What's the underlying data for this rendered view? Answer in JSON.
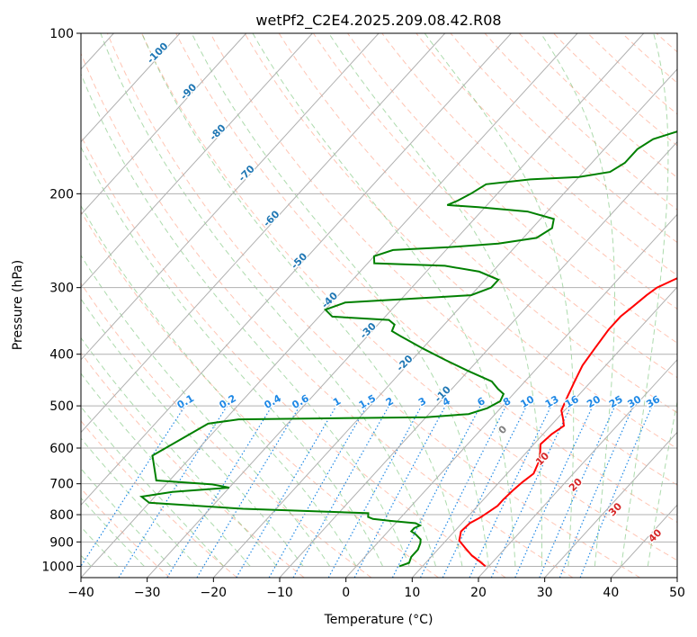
{
  "chart_data": {
    "type": "line",
    "title": "wetPf2_C2E4.2025.209.08.42.R08",
    "xlabel": "Temperature (°C)",
    "ylabel": "Pressure (hPa)",
    "xlim": [
      -40,
      50
    ],
    "ylim": [
      1050,
      100
    ],
    "y_scale": "log",
    "grid": true,
    "x_ticks": [
      -40,
      -30,
      -20,
      -10,
      0,
      10,
      20,
      30,
      40,
      50
    ],
    "y_ticks": [
      100,
      200,
      300,
      400,
      500,
      600,
      700,
      800,
      900,
      1000
    ],
    "series": [
      {
        "color": "#ff0000",
        "kind": "temperature",
        "points": [
          [
            19.5,
            1000
          ],
          [
            18,
            980
          ],
          [
            16,
            955
          ],
          [
            14,
            925
          ],
          [
            12,
            895
          ],
          [
            11,
            860
          ],
          [
            11.2,
            830
          ],
          [
            12,
            810
          ],
          [
            12.5,
            790
          ],
          [
            13,
            770
          ],
          [
            13,
            750
          ],
          [
            13.2,
            720
          ],
          [
            13.5,
            695
          ],
          [
            14,
            670
          ],
          [
            13.5,
            650
          ],
          [
            13,
            630
          ],
          [
            12,
            610
          ],
          [
            11,
            590
          ],
          [
            11.3,
            565
          ],
          [
            12,
            545
          ],
          [
            11,
            530
          ],
          [
            9.5,
            510
          ],
          [
            8.5,
            480
          ],
          [
            7.5,
            450
          ],
          [
            6.5,
            420
          ],
          [
            6,
            390
          ],
          [
            5.5,
            360
          ],
          [
            5.5,
            340
          ],
          [
            6,
            325
          ],
          [
            6.5,
            310
          ],
          [
            7,
            300
          ],
          [
            8.5,
            290
          ],
          [
            10,
            280
          ],
          [
            10.5,
            265
          ],
          [
            9,
            252
          ],
          [
            8,
            240
          ],
          [
            8,
            225
          ],
          [
            9,
            210
          ],
          [
            9.5,
            195
          ],
          [
            9.5,
            180
          ],
          [
            10,
            160
          ],
          [
            9.5,
            140
          ],
          [
            9,
            125
          ],
          [
            9.5,
            115
          ],
          [
            10,
            108
          ],
          [
            11,
            103
          ],
          [
            12,
            100
          ]
        ]
      },
      {
        "color": "#008000",
        "kind": "dewpoint",
        "points": [
          [
            6.5,
            1000
          ],
          [
            7.5,
            985
          ],
          [
            7,
            960
          ],
          [
            7,
            930
          ],
          [
            6.5,
            905
          ],
          [
            6,
            890
          ],
          [
            4.5,
            870
          ],
          [
            3.5,
            860
          ],
          [
            3.5,
            848
          ],
          [
            4,
            838
          ],
          [
            3,
            830
          ],
          [
            -1,
            822
          ],
          [
            -4,
            815
          ],
          [
            -5,
            808
          ],
          [
            -5.5,
            795
          ],
          [
            -25,
            780
          ],
          [
            -40,
            760
          ],
          [
            -42,
            740
          ],
          [
            -38,
            725
          ],
          [
            -30,
            712
          ],
          [
            -33,
            702
          ],
          [
            -42,
            690
          ],
          [
            -46,
            620
          ],
          [
            -42,
            540
          ],
          [
            -38,
            530
          ],
          [
            -10,
            525
          ],
          [
            -4,
            518
          ],
          [
            -2,
            505
          ],
          [
            -1,
            490
          ],
          [
            -1.5,
            475
          ],
          [
            -3,
            465
          ],
          [
            -5,
            450
          ],
          [
            -10,
            430
          ],
          [
            -15,
            410
          ],
          [
            -20,
            390
          ],
          [
            -25,
            370
          ],
          [
            -27,
            362
          ],
          [
            -27.5,
            352
          ],
          [
            -29,
            345
          ],
          [
            -38,
            340
          ],
          [
            -40,
            330
          ],
          [
            -38,
            320
          ],
          [
            -20,
            310
          ],
          [
            -18,
            300
          ],
          [
            -18,
            290
          ],
          [
            -22,
            280
          ],
          [
            -28,
            273
          ],
          [
            -39,
            270
          ],
          [
            -40,
            262
          ],
          [
            -38,
            255
          ],
          [
            -30,
            252
          ],
          [
            -23,
            248
          ],
          [
            -18,
            242
          ],
          [
            -17,
            232
          ],
          [
            -18,
            223
          ],
          [
            -23,
            216
          ],
          [
            -31,
            212
          ],
          [
            -36,
            210
          ],
          [
            -35,
            206
          ],
          [
            -34,
            200
          ],
          [
            -33,
            192
          ],
          [
            -27,
            188
          ],
          [
            -20,
            186
          ],
          [
            -16,
            182
          ],
          [
            -15,
            175
          ],
          [
            -15,
            165
          ],
          [
            -14,
            158
          ],
          [
            -12,
            154
          ],
          [
            -10,
            150
          ],
          [
            -8,
            145
          ],
          [
            -7,
            137
          ],
          [
            -7,
            130
          ],
          [
            -6,
            120
          ],
          [
            -3,
            115
          ],
          [
            -1,
            112
          ],
          [
            0,
            108
          ],
          [
            0.5,
            104
          ],
          [
            0.8,
            100
          ]
        ]
      }
    ],
    "isotherm_labels": [
      "-100",
      "-90",
      "-80",
      "-70",
      "-60",
      "-50",
      "-40",
      "-30",
      "-20",
      "-10"
    ],
    "mixing_ratio_labels": [
      "0.1",
      "0.2",
      "0.4",
      "0.6",
      "1",
      "1.5",
      "2",
      "3",
      "4",
      "6",
      "8",
      "10",
      "13",
      "16",
      "20",
      "25",
      "30",
      "36"
    ],
    "moist_adiabat_labels": [
      "0",
      "10",
      "20",
      "30",
      "40"
    ],
    "colors": {
      "isotherm_label": "#1f77b4",
      "mixing_ratio": "#1e88e5",
      "dry_adiabat": "#ff8c69",
      "moist_adiabat": "#5cb85c",
      "moist_label_warm": "#d62728",
      "moist_label_zero": "#7f7f7f",
      "grid": "#b0b0b0"
    }
  }
}
